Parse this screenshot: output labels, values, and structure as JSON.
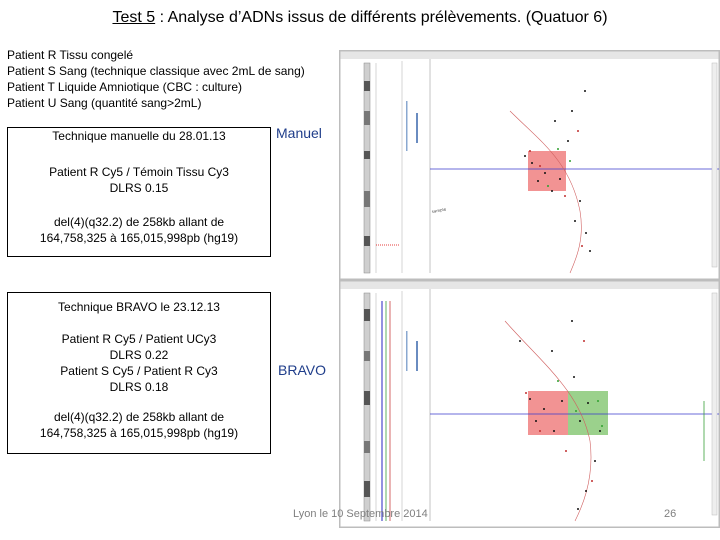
{
  "title": {
    "prefix": "Test 5",
    "rest": " : Analyse d’ADNs issus de différents prélèvements. (Quatuor 6)"
  },
  "patients": [
    "Patient R Tissu congelé",
    "Patient S Sang (technique classique avec 2mL de sang)",
    "Patient T Liquide Amniotique (CBC : culture)",
    "Patient U Sang (quantité sang>2mL)"
  ],
  "manual_box": {
    "technique": "Technique manuelle du 28.01.13",
    "comparison": "Patient R Cy5 / Témoin Tissu Cy3",
    "dlrs": "DLRS 0.15",
    "deletion_line1": "del(4)(q32.2) de 258kb allant de",
    "deletion_line2": "164,758,325 à 165,015,998pb (hg19)"
  },
  "bravo_box": {
    "technique": "Technique BRAVO le 23.12.13",
    "comparison1": "Patient R Cy5 / Patient UCy3",
    "dlrs1": "DLRS 0.22",
    "comparison2": "Patient S Cy5 / Patient R Cy3",
    "dlrs2": "DLRS 0.18",
    "deletion_line1": "del(4)(q32.2) de 258kb allant de",
    "deletion_line2": "164,758,325 à 165,015,998pb (hg19)"
  },
  "labels": {
    "manual": "Manuel",
    "bravo": "BRAVO"
  },
  "footer": {
    "text": "Lyon le 10 Septembre 2014",
    "page": "26"
  },
  "colors": {
    "label_blue": "#1f3d8a",
    "deletion_red": "#f08080",
    "gain_green": "#90cc80",
    "baseline_blue": "#3a3acc"
  },
  "icons": {
    "scan_plot": "acgh-profile-scan"
  }
}
